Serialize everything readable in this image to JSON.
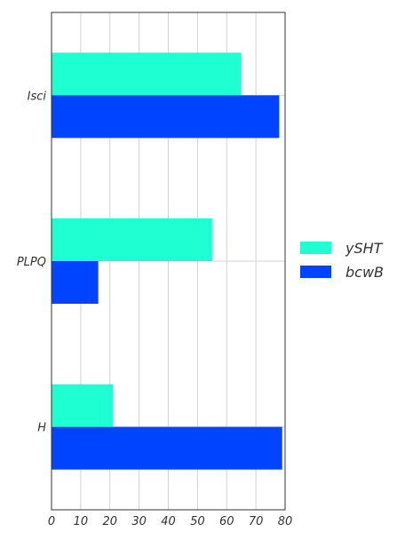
{
  "chart_data": {
    "type": "bar",
    "orientation": "horizontal",
    "categories": [
      "Isci",
      "PLPQ",
      "H"
    ],
    "series": [
      {
        "name": "ySHT",
        "values": [
          65,
          55,
          21
        ],
        "color": "#1effd2"
      },
      {
        "name": "bcwB",
        "values": [
          78,
          16,
          79
        ],
        "color": "#0044ff"
      }
    ],
    "xlim": [
      0,
      80
    ],
    "xticks": [
      0,
      10,
      20,
      30,
      40,
      50,
      60,
      70,
      80
    ],
    "grid": true,
    "legend_position": "right",
    "title": "",
    "xlabel": "",
    "ylabel": ""
  }
}
